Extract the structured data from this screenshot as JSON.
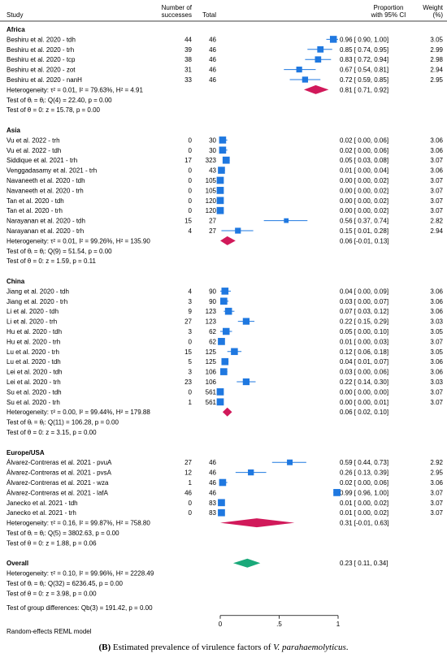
{
  "header": {
    "study": "Study",
    "successes": "Number of\nsuccesses",
    "total": "Total",
    "proportion": "Proportion\nwith 95% CI",
    "weight": "Weight\n(%)"
  },
  "footer": {
    "model_note": "Random-effects REML model",
    "caption_bold": "(B)",
    "caption_text": " Estimated prevalence of virulence factors of ",
    "caption_italic": "V. parahaemolyticus",
    "caption_end": "."
  },
  "chart_data": {
    "type": "forest",
    "xlim": [
      0,
      1
    ],
    "xticks": [
      {
        "value": 0,
        "label": "0"
      },
      {
        "value": 0.5,
        "label": ".5"
      },
      {
        "value": 1,
        "label": "1"
      }
    ],
    "groups": [
      {
        "name": "Africa",
        "studies": [
          {
            "study": "Beshiru et al. 2020 - tdh",
            "successes": "44",
            "total": "46",
            "est": 0.96,
            "lo": 0.9,
            "hi": 1.0,
            "ci_text": "0.96 [ 0.90, 1.00]",
            "weight": "3.05"
          },
          {
            "study": "Beshiru et al. 2020 - trh",
            "successes": "39",
            "total": "46",
            "est": 0.85,
            "lo": 0.74,
            "hi": 0.95,
            "ci_text": "0.85 [ 0.74, 0.95]",
            "weight": "2.99"
          },
          {
            "study": "Beshiru et al. 2020 - tcp",
            "successes": "38",
            "total": "46",
            "est": 0.83,
            "lo": 0.72,
            "hi": 0.94,
            "ci_text": "0.83 [ 0.72, 0.94]",
            "weight": "2.98"
          },
          {
            "study": "Beshiru et al. 2020 - zot",
            "successes": "31",
            "total": "46",
            "est": 0.67,
            "lo": 0.54,
            "hi": 0.81,
            "ci_text": "0.67 [ 0.54, 0.81]",
            "weight": "2.94"
          },
          {
            "study": "Beshiru et al. 2020 - nanH",
            "successes": "33",
            "total": "46",
            "est": 0.72,
            "lo": 0.59,
            "hi": 0.85,
            "ci_text": "0.72 [ 0.59, 0.85]",
            "weight": "2.95"
          }
        ],
        "pooled": {
          "est": 0.81,
          "lo": 0.71,
          "hi": 0.92,
          "ci_text": "0.81 [ 0.71, 0.92]"
        },
        "stats": [
          "Heterogeneity: τ² = 0.01, I² = 79.63%, H² = 4.91",
          "Test of θᵢ = θⱼ: Q(4) = 22.40, p = 0.00",
          "Test of θ = 0: z = 15.78, p = 0.00"
        ]
      },
      {
        "name": "Asia",
        "studies": [
          {
            "study": "Vu et al. 2022 - trh",
            "successes": "0",
            "total": "30",
            "est": 0.02,
            "lo": 0.0,
            "hi": 0.06,
            "ci_text": "0.02 [ 0.00, 0.06]",
            "weight": "3.06"
          },
          {
            "study": "Vu et al. 2022 - tdh",
            "successes": "0",
            "total": "30",
            "est": 0.02,
            "lo": 0.0,
            "hi": 0.06,
            "ci_text": "0.02 [ 0.00, 0.06]",
            "weight": "3.06"
          },
          {
            "study": "Siddique et al. 2021 - trh",
            "successes": "17",
            "total": "323",
            "est": 0.05,
            "lo": 0.03,
            "hi": 0.08,
            "ci_text": "0.05 [ 0.03, 0.08]",
            "weight": "3.07"
          },
          {
            "study": "Venggadasamy et al. 2021 - trh",
            "successes": "0",
            "total": "43",
            "est": 0.01,
            "lo": 0.0,
            "hi": 0.04,
            "ci_text": "0.01 [ 0.00, 0.04]",
            "weight": "3.06"
          },
          {
            "study": "Navaneeth et al. 2020 - tdh",
            "successes": "0",
            "total": "105",
            "est": 0.0,
            "lo": 0.0,
            "hi": 0.02,
            "ci_text": "0.00 [ 0.00, 0.02]",
            "weight": "3.07"
          },
          {
            "study": "Navaneeth et al. 2020 - trh",
            "successes": "0",
            "total": "105",
            "est": 0.0,
            "lo": 0.0,
            "hi": 0.02,
            "ci_text": "0.00 [ 0.00, 0.02]",
            "weight": "3.07"
          },
          {
            "study": "Tan et al. 2020 - tdh",
            "successes": "0",
            "total": "120",
            "est": 0.0,
            "lo": 0.0,
            "hi": 0.02,
            "ci_text": "0.00 [ 0.00, 0.02]",
            "weight": "3.07"
          },
          {
            "study": "Tan et al. 2020 - trh",
            "successes": "0",
            "total": "120",
            "est": 0.0,
            "lo": 0.0,
            "hi": 0.02,
            "ci_text": "0.00 [ 0.00, 0.02]",
            "weight": "3.07"
          },
          {
            "study": "Narayanan et al. 2020 - tdh",
            "successes": "15",
            "total": "27",
            "est": 0.56,
            "lo": 0.37,
            "hi": 0.74,
            "ci_text": "0.56 [ 0.37, 0.74]",
            "weight": "2.82"
          },
          {
            "study": "Narayanan et al. 2020 - trh",
            "successes": "4",
            "total": "27",
            "est": 0.15,
            "lo": 0.01,
            "hi": 0.28,
            "ci_text": "0.15 [ 0.01, 0.28]",
            "weight": "2.94"
          }
        ],
        "pooled": {
          "est": 0.06,
          "lo": -0.01,
          "hi": 0.13,
          "ci_text": "0.06 [-0.01, 0.13]"
        },
        "stats": [
          "Heterogeneity: τ² = 0.01, I² = 99.26%, H² = 135.90",
          "Test of θᵢ = θⱼ: Q(9) = 51.54, p = 0.00",
          "Test of θ = 0: z = 1.59, p = 0.11"
        ]
      },
      {
        "name": "China",
        "studies": [
          {
            "study": "Jiang et al. 2020 - tdh",
            "successes": "4",
            "total": "90",
            "est": 0.04,
            "lo": 0.0,
            "hi": 0.09,
            "ci_text": "0.04 [ 0.00, 0.09]",
            "weight": "3.06"
          },
          {
            "study": "Jiang et al. 2020 - trh",
            "successes": "3",
            "total": "90",
            "est": 0.03,
            "lo": 0.0,
            "hi": 0.07,
            "ci_text": "0.03 [ 0.00, 0.07]",
            "weight": "3.06"
          },
          {
            "study": "Li et al. 2020 - tdh",
            "successes": "9",
            "total": "123",
            "est": 0.07,
            "lo": 0.03,
            "hi": 0.12,
            "ci_text": "0.07 [ 0.03, 0.12]",
            "weight": "3.06"
          },
          {
            "study": "Li et al. 2020 - trh",
            "successes": "27",
            "total": "123",
            "est": 0.22,
            "lo": 0.15,
            "hi": 0.29,
            "ci_text": "0.22 [ 0.15, 0.29]",
            "weight": "3.03"
          },
          {
            "study": "Hu et al. 2020 - tdh",
            "successes": "3",
            "total": "62",
            "est": 0.05,
            "lo": 0.0,
            "hi": 0.1,
            "ci_text": "0.05 [ 0.00, 0.10]",
            "weight": "3.05"
          },
          {
            "study": "Hu et al. 2020 - trh",
            "successes": "0",
            "total": "62",
            "est": 0.01,
            "lo": 0.0,
            "hi": 0.03,
            "ci_text": "0.01 [ 0.00, 0.03]",
            "weight": "3.07"
          },
          {
            "study": "Lu et al. 2020 - trh",
            "successes": "15",
            "total": "125",
            "est": 0.12,
            "lo": 0.06,
            "hi": 0.18,
            "ci_text": "0.12 [ 0.06, 0.18]",
            "weight": "3.05"
          },
          {
            "study": "Lu et al. 2020 - tdh",
            "successes": "5",
            "total": "125",
            "est": 0.04,
            "lo": 0.01,
            "hi": 0.07,
            "ci_text": "0.04 [ 0.01, 0.07]",
            "weight": "3.06"
          },
          {
            "study": "Lei et al. 2020 - tdh",
            "successes": "3",
            "total": "106",
            "est": 0.03,
            "lo": 0.0,
            "hi": 0.06,
            "ci_text": "0.03 [ 0.00, 0.06]",
            "weight": "3.06"
          },
          {
            "study": "Lei et al. 2020 - trh",
            "successes": "23",
            "total": "106",
            "est": 0.22,
            "lo": 0.14,
            "hi": 0.3,
            "ci_text": "0.22 [ 0.14, 0.30]",
            "weight": "3.03"
          },
          {
            "study": "Su et al. 2020 - tdh",
            "successes": "0",
            "total": "561",
            "est": 0.0,
            "lo": 0.0,
            "hi": 0.0,
            "ci_text": "0.00 [ 0.00, 0.00]",
            "weight": "3.07"
          },
          {
            "study": "Su et al. 2020 - trh",
            "successes": "1",
            "total": "561",
            "est": 0.0,
            "lo": 0.0,
            "hi": 0.01,
            "ci_text": "0.00 [ 0.00, 0.01]",
            "weight": "3.07"
          }
        ],
        "pooled": {
          "est": 0.06,
          "lo": 0.02,
          "hi": 0.1,
          "ci_text": "0.06 [ 0.02, 0.10]"
        },
        "stats": [
          "Heterogeneity: τ² = 0.00, I² = 99.44%, H² = 179.88",
          "Test of θᵢ = θⱼ: Q(11) = 106.28, p = 0.00",
          "Test of θ = 0: z = 3.15, p = 0.00"
        ]
      },
      {
        "name": "Europe/USA",
        "studies": [
          {
            "study": "Álvarez-Contreras et al. 2021 - pvuA",
            "successes": "27",
            "total": "46",
            "est": 0.59,
            "lo": 0.44,
            "hi": 0.73,
            "ci_text": "0.59 [ 0.44, 0.73]",
            "weight": "2.92"
          },
          {
            "study": "Álvarez-Contreras et al. 2021 - pvsA",
            "successes": "12",
            "total": "46",
            "est": 0.26,
            "lo": 0.13,
            "hi": 0.39,
            "ci_text": "0.26 [ 0.13, 0.39]",
            "weight": "2.95"
          },
          {
            "study": "Álvarez-Contreras et al. 2021 - wza",
            "successes": "1",
            "total": "46",
            "est": 0.02,
            "lo": 0.0,
            "hi": 0.06,
            "ci_text": "0.02 [ 0.00, 0.06]",
            "weight": "3.06"
          },
          {
            "study": "Álvarez-Contreras et al. 2021 - lafA",
            "successes": "46",
            "total": "46",
            "est": 0.99,
            "lo": 0.96,
            "hi": 1.0,
            "ci_text": "0.99 [ 0.96, 1.00]",
            "weight": "3.07"
          },
          {
            "study": "Janecko et al. 2021 - tdh",
            "successes": "0",
            "total": "83",
            "est": 0.01,
            "lo": 0.0,
            "hi": 0.02,
            "ci_text": "0.01 [ 0.00, 0.02]",
            "weight": "3.07"
          },
          {
            "study": "Janecko et al. 2021 - trh",
            "successes": "0",
            "total": "83",
            "est": 0.01,
            "lo": 0.0,
            "hi": 0.02,
            "ci_text": "0.01 [ 0.00, 0.02]",
            "weight": "3.07"
          }
        ],
        "pooled": {
          "est": 0.31,
          "lo": -0.01,
          "hi": 0.63,
          "ci_text": "0.31 [-0.01, 0.63]"
        },
        "stats": [
          "Heterogeneity: τ² = 0.16, I² = 99.87%, H² = 758.80",
          "Test of θᵢ = θⱼ: Q(5) = 3802.63, p = 0.00",
          "Test of θ = 0: z = 1.88, p = 0.06"
        ]
      }
    ],
    "overall": {
      "name": "Overall",
      "est": 0.23,
      "lo": 0.11,
      "hi": 0.34,
      "ci_text": "0.23 [ 0.11, 0.34]",
      "stats": [
        "Heterogeneity: τ² = 0.10, I² = 99.96%, H² = 2228.49",
        "Test of θᵢ = θⱼ: Q(32) = 6236.45, p = 0.00",
        "Test of θ = 0: z = 3.98, p = 0.00"
      ],
      "group_test": "Test of group differences: Qb(3) = 191.42, p = 0.00"
    },
    "colors": {
      "study_marker": "#1f78e0",
      "group_diamond": "#d1195a",
      "overall_diamond": "#1aa97a"
    }
  }
}
